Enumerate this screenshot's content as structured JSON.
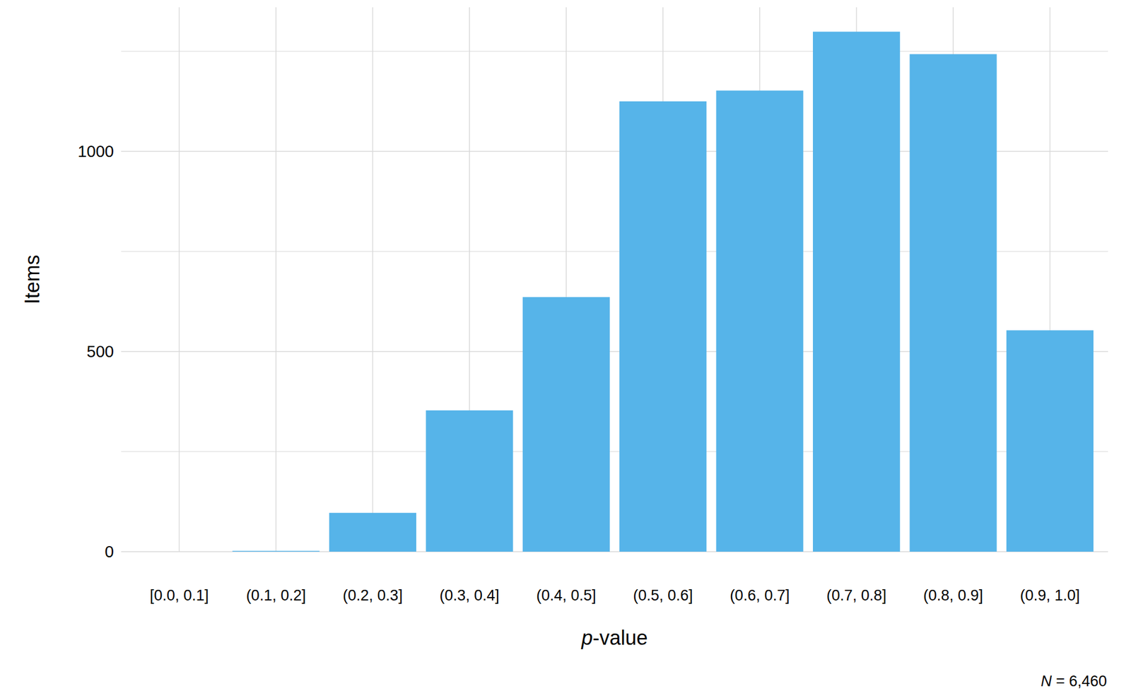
{
  "chart_data": {
    "type": "bar",
    "x_label": "p-value",
    "y_label": "Items",
    "caption": "N = 6,460",
    "categories": [
      "[0.0, 0.1]",
      "(0.1, 0.2]",
      "(0.2, 0.3]",
      "(0.3, 0.4]",
      "(0.4, 0.5]",
      "(0.5, 0.6]",
      "(0.6, 0.7]",
      "(0.7, 0.8]",
      "(0.8, 0.9]",
      "(0.9, 1.0]"
    ],
    "values": [
      0,
      2,
      97,
      353,
      636,
      1125,
      1152,
      1299,
      1243,
      553
    ],
    "color": "#56b4e9",
    "ylim": [
      0,
      1360
    ],
    "yticks": [
      0,
      500,
      1000
    ],
    "grid": true
  }
}
